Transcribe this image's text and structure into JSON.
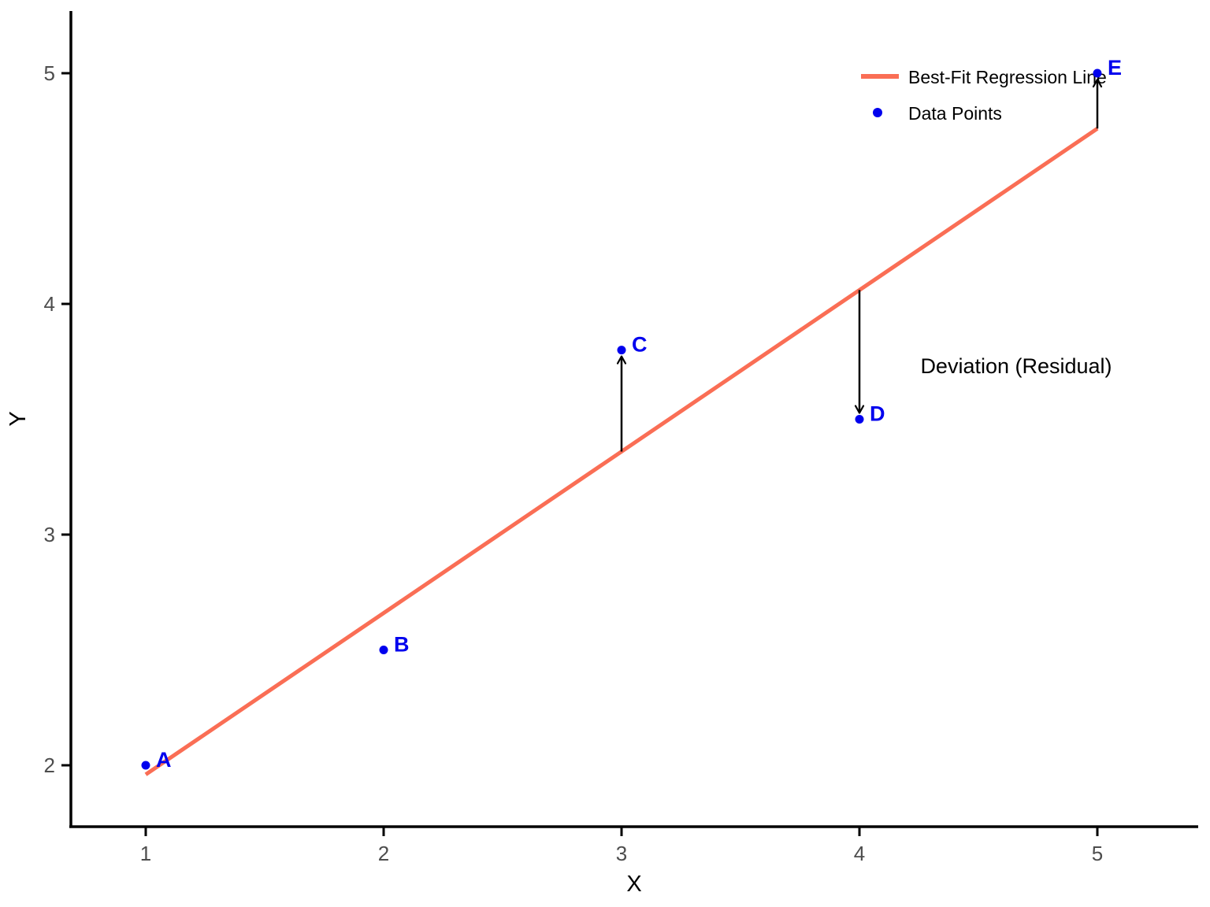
{
  "colors": {
    "background": "#ffffff",
    "regression_line": "#fa6e55",
    "data_point": "#0000ee",
    "point_label": "#0000ee",
    "axis_line": "#000000",
    "tick_label": "#4d4d4d",
    "axis_title": "#000000",
    "legend_text": "#000000",
    "annotation_text": "#000000",
    "residual_arrow": "#000000"
  },
  "chart_data": {
    "type": "scatter",
    "title": "",
    "xlabel": "X",
    "ylabel": "Y",
    "xlim": [
      0.68,
      5.42
    ],
    "ylim": [
      1.73,
      5.28
    ],
    "x_ticks": [
      1,
      2,
      3,
      4,
      5
    ],
    "y_ticks": [
      2,
      3,
      4,
      5
    ],
    "grid": false,
    "points": [
      {
        "label": "A",
        "x": 1,
        "y": 2.0
      },
      {
        "label": "B",
        "x": 2,
        "y": 2.5
      },
      {
        "label": "C",
        "x": 3,
        "y": 3.8
      },
      {
        "label": "D",
        "x": 4,
        "y": 3.5
      },
      {
        "label": "E",
        "x": 5,
        "y": 5.0
      }
    ],
    "regression_line": {
      "label": "Best-Fit Regression Line",
      "intercept": 1.26,
      "slope": 0.7,
      "x_start": 1,
      "x_end": 5
    },
    "residual_arrows": [
      {
        "point": "C",
        "direction": "up"
      },
      {
        "point": "D",
        "direction": "down"
      },
      {
        "point": "E",
        "direction": "up"
      }
    ],
    "annotation": {
      "text": "Deviation (Residual)"
    },
    "legend": {
      "position": "top-right",
      "frame": false,
      "entries": [
        {
          "swatch": "line",
          "label": "Best-Fit Regression Line"
        },
        {
          "swatch": "point",
          "label": "Data Points"
        }
      ]
    }
  }
}
